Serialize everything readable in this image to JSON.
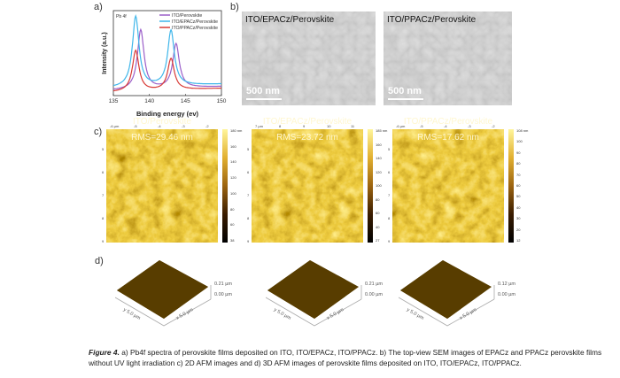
{
  "panels": {
    "a": "a)",
    "b": "b)",
    "c": "c)",
    "d": "d)"
  },
  "chart_data": {
    "type": "line",
    "annotation": "Pb 4f",
    "xlabel": "Binding energy (ev)",
    "ylabel": "Intensity (a.u.)",
    "xlim": [
      135,
      150
    ],
    "xticks": [
      "135",
      "140",
      "145",
      "150"
    ],
    "legend_position": "top-right",
    "series": [
      {
        "name": "ITO/Perovskite",
        "color": "#9b5fc9",
        "peaks": [
          {
            "x": 138.8,
            "height": 0.7
          },
          {
            "x": 143.7,
            "height": 0.52
          }
        ],
        "baseline": 0.06
      },
      {
        "name": "ITO/EPACz/Perovskite",
        "color": "#3fb6ea",
        "peaks": [
          {
            "x": 138.1,
            "height": 0.83
          },
          {
            "x": 143.0,
            "height": 0.65
          }
        ],
        "baseline": 0.09
      },
      {
        "name": "ITO/PPACz/Perovskite",
        "color": "#d83a35",
        "peaks": [
          {
            "x": 138.1,
            "height": 0.48
          },
          {
            "x": 143.0,
            "height": 0.37
          }
        ],
        "baseline": 0.04
      }
    ]
  },
  "sem": [
    {
      "title": "ITO/EPACz/Perovskite",
      "scale": "500 nm"
    },
    {
      "title": "ITO/PPACz/Perovskite",
      "scale": "500 nm"
    }
  ],
  "afm2d": [
    {
      "rms": "RMS=29.46 nm",
      "name": "ITO/Perovskite",
      "xticks": [
        "-6 µm",
        "-5",
        "-4",
        "-3",
        "-2"
      ],
      "yticks": [
        "5",
        "6",
        "7",
        "8",
        "9"
      ],
      "cbar": [
        "180 nm",
        "160",
        "140",
        "120",
        "100",
        "80",
        "60",
        "38"
      ]
    },
    {
      "rms": "RMS=23.72 nm",
      "name": "ITO/EPACz/Perovskite",
      "xticks": [
        "7 µm",
        "8",
        "9",
        "10",
        "11"
      ],
      "yticks": [
        "5",
        "6",
        "7",
        "8",
        "9"
      ],
      "cbar": [
        "185 nm",
        "160",
        "140",
        "120",
        "100",
        "80",
        "60",
        "40",
        "27"
      ]
    },
    {
      "rms": "RMS=17.62 nm",
      "name": "ITO/PPACz/Perovskite",
      "xticks": [
        "-6 µm",
        "-5",
        "-4",
        "-3",
        "-2"
      ],
      "yticks": [
        "5",
        "6",
        "7",
        "8",
        "9"
      ],
      "cbar": [
        "108 nm",
        "100",
        "90",
        "80",
        "70",
        "60",
        "50",
        "40",
        "30",
        "20",
        "12"
      ]
    }
  ],
  "afm3d": [
    {
      "zmax": "0.21 µm",
      "zmin": "0.00 µm",
      "y": "y 5.0 µm",
      "x": "x 5.0 µm"
    },
    {
      "zmax": "0.21 µm",
      "zmin": "0.00 µm",
      "y": "y 5.0 µm",
      "x": "x 5.0 µm"
    },
    {
      "zmax": "0.12 µm",
      "zmin": "0.00 µm",
      "y": "y 5.0 µm",
      "x": "x 5.0 µm"
    }
  ],
  "caption": {
    "label": "Figure 4.",
    "text": " a) Pb4f spectra of perovskite films deposited on ITO, ITO/EPACz, ITO/PPACz. b) The top-view SEM images of EPACz and PPACz perovskite films without UV light irradiation c) 2D AFM images and d) 3D AFM images of perovskite films deposited on ITO, ITO/EPACz, ITO/PPACz."
  }
}
